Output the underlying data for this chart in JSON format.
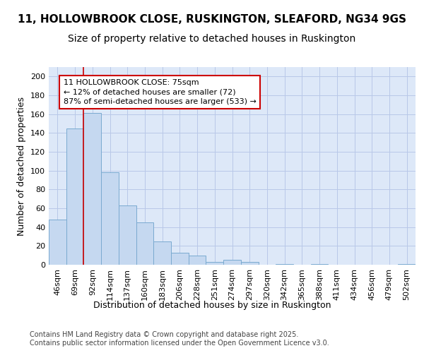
{
  "title_line1": "11, HOLLOWBROOK CLOSE, RUSKINGTON, SLEAFORD, NG34 9GS",
  "title_line2": "Size of property relative to detached houses in Ruskington",
  "xlabel": "Distribution of detached houses by size in Ruskington",
  "ylabel": "Number of detached properties",
  "categories": [
    "46sqm",
    "69sqm",
    "92sqm",
    "114sqm",
    "137sqm",
    "160sqm",
    "183sqm",
    "206sqm",
    "228sqm",
    "251sqm",
    "274sqm",
    "297sqm",
    "320sqm",
    "342sqm",
    "365sqm",
    "388sqm",
    "411sqm",
    "434sqm",
    "456sqm",
    "479sqm",
    "502sqm"
  ],
  "values": [
    48,
    145,
    161,
    98,
    63,
    45,
    25,
    13,
    10,
    3,
    5,
    3,
    0,
    1,
    0,
    1,
    0,
    0,
    0,
    0,
    1
  ],
  "bar_color": "#c5d8f0",
  "bar_edge_color": "#7aaad0",
  "grid_color": "#b8c8e8",
  "bg_color": "#dde8f8",
  "annotation_text": "11 HOLLOWBROOK CLOSE: 75sqm\n← 12% of detached houses are smaller (72)\n87% of semi-detached houses are larger (533) →",
  "annotation_box_facecolor": "#ffffff",
  "annotation_box_edgecolor": "#cc0000",
  "vline_color": "#cc0000",
  "vline_x": 1.5,
  "ylim": [
    0,
    210
  ],
  "yticks": [
    0,
    20,
    40,
    60,
    80,
    100,
    120,
    140,
    160,
    180,
    200
  ],
  "footer_text": "Contains HM Land Registry data © Crown copyright and database right 2025.\nContains public sector information licensed under the Open Government Licence v3.0.",
  "title1_fontsize": 11,
  "title2_fontsize": 10,
  "ylabel_fontsize": 9,
  "xlabel_fontsize": 9,
  "tick_fontsize": 8,
  "annotation_fontsize": 8,
  "footer_fontsize": 7
}
